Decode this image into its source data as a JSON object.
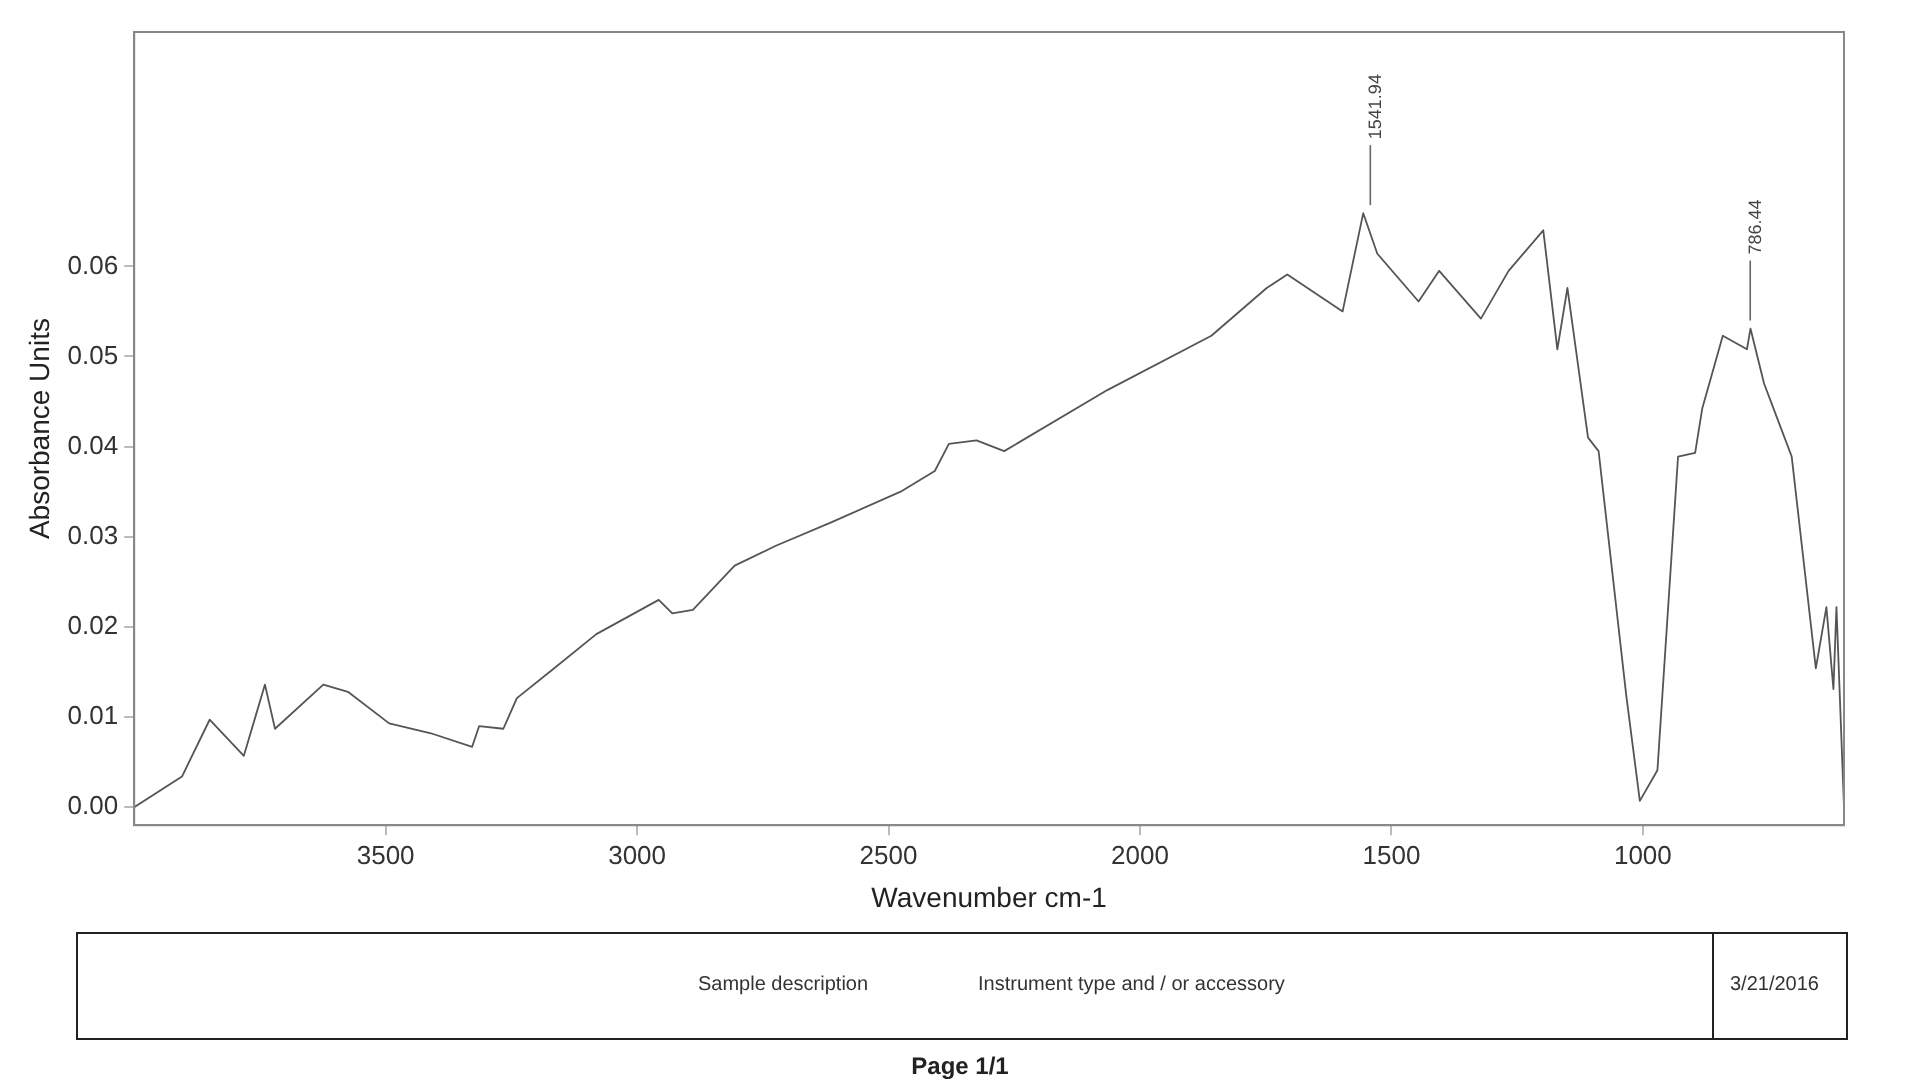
{
  "chart_data": {
    "type": "line",
    "xlabel": "Wavenumber cm-1",
    "ylabel": "Absorbance Units",
    "xlim": [
      4000,
      600
    ],
    "xticks": [
      3500,
      3000,
      2500,
      2000,
      1500,
      1000
    ],
    "ylim": [
      -0.002,
      0.086
    ],
    "yticks": [
      {
        "value": 0,
        "label": "0.00"
      },
      0.01,
      0.02,
      0.03,
      0.04,
      0.05,
      0.06
    ],
    "grid": false,
    "legend": false,
    "marker": "none",
    "line_style": "solid",
    "series": [
      {
        "color": "#555555",
        "x": [
          4000,
          3905,
          3850,
          3782,
          3740,
          3720,
          3624,
          3575,
          3493,
          3410,
          3328,
          3314,
          3266,
          3239,
          3163,
          3081,
          2957,
          2930,
          2889,
          2806,
          2724,
          2614,
          2476,
          2408,
          2380,
          2325,
          2270,
          2064,
          1858,
          1748,
          1707,
          1597,
          1556,
          1528,
          1446,
          1405,
          1322,
          1267,
          1198,
          1170,
          1150,
          1109,
          1088,
          1033,
          1006,
          971,
          930,
          896,
          882,
          841,
          793,
          786,
          759,
          704,
          656,
          635,
          621,
          615,
          600
        ],
        "values": [
          0.0,
          0.0034,
          0.0097,
          0.0057,
          0.0136,
          0.0087,
          0.0136,
          0.0128,
          0.0093,
          0.0082,
          0.0067,
          0.009,
          0.0087,
          0.0121,
          0.0155,
          0.0192,
          0.023,
          0.0215,
          0.0219,
          0.0268,
          0.029,
          0.0316,
          0.035,
          0.0373,
          0.0403,
          0.0407,
          0.0395,
          0.0463,
          0.0523,
          0.0576,
          0.0591,
          0.055,
          0.0659,
          0.0614,
          0.0561,
          0.0595,
          0.0542,
          0.0595,
          0.064,
          0.0508,
          0.0576,
          0.041,
          0.0395,
          0.0124,
          0.0007,
          0.0041,
          0.0389,
          0.0393,
          0.0442,
          0.0523,
          0.0508,
          0.0531,
          0.047,
          0.0389,
          0.0154,
          0.0222,
          0.0131,
          0.0222,
          0.0
        ]
      }
    ],
    "annotations": [
      {
        "text": "1541.94",
        "x": 1541.94,
        "y": 0.0659
      },
      {
        "text": "786.44",
        "x": 786.44,
        "y": 0.0531
      },
      "Sample description",
      "Instrument type and / or accessory",
      "3/21/2016",
      "Page 1/1"
    ]
  }
}
